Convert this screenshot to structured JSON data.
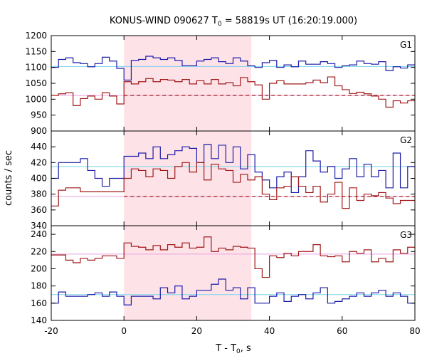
{
  "chart_data": {
    "type": "line",
    "title": "KONUS-WIND 090627 T0 = 58819s UT (16:20:19.000)",
    "title_parts": {
      "prefix": "KONUS-WIND 090627 T",
      "sub": "0",
      "suffix": " = 58819s UT (16:20:19.000)"
    },
    "xlabel": "T - T0, s",
    "xlabel_parts": {
      "prefix": "T - T",
      "sub": "0",
      "suffix": ", s"
    },
    "ylabel": "counts / sec",
    "xlim": [
      -20,
      80
    ],
    "x_ticks": [
      -20,
      0,
      20,
      40,
      60,
      80
    ],
    "highlight_interval": [
      0,
      35
    ],
    "bin_edges": [
      -20,
      -18,
      -16,
      -14,
      -12,
      -10,
      -8,
      -6,
      -4,
      -2,
      0,
      2,
      4,
      6,
      8,
      10,
      12,
      14,
      16,
      18,
      20,
      22,
      24,
      26,
      28,
      30,
      32,
      34,
      36,
      38,
      40,
      42,
      44,
      46,
      48,
      50,
      52,
      54,
      56,
      58,
      60,
      62,
      64,
      66,
      68,
      70,
      72,
      74,
      76,
      78,
      80
    ],
    "panels": [
      {
        "name": "G1",
        "ylim": [
          900,
          1200
        ],
        "y_ticks": [
          900,
          950,
          1000,
          1050,
          1100,
          1150,
          1200
        ],
        "series": [
          {
            "name": "blue",
            "color": "#1c1ca8",
            "bg_level": 1103,
            "bg_color": "#7ad4ee",
            "values": [
              1100,
              1125,
              1130,
              1115,
              1112,
              1102,
              1112,
              1132,
              1120,
              1097,
              1060,
              1122,
              1125,
              1135,
              1130,
              1125,
              1130,
              1122,
              1105,
              1105,
              1120,
              1125,
              1130,
              1118,
              1112,
              1130,
              1120,
              1105,
              1100,
              1115,
              1122,
              1100,
              1108,
              1102,
              1120,
              1110,
              1110,
              1118,
              1112,
              1100,
              1105,
              1108,
              1120,
              1112,
              1110,
              1118,
              1090,
              1102,
              1098,
              1108
            ]
          },
          {
            "name": "red",
            "color": "#a01818",
            "bg_level": 1012,
            "bg_color": "#e8a0e0",
            "dashed_level": 1012,
            "values": [
              1012,
              1017,
              1020,
              980,
              1002,
              1010,
              1000,
              1020,
              1010,
              985,
              1055,
              1048,
              1055,
              1065,
              1055,
              1062,
              1060,
              1055,
              1062,
              1048,
              1058,
              1048,
              1062,
              1048,
              1052,
              1042,
              1068,
              1055,
              1045,
              1000,
              1050,
              1058,
              1048,
              1048,
              1048,
              1052,
              1060,
              1052,
              1070,
              1042,
              1030,
              1018,
              1022,
              1017,
              1010,
              1000,
              975,
              995,
              988,
              995
            ]
          }
        ]
      },
      {
        "name": "G2",
        "ylim": [
          340,
          460
        ],
        "y_ticks": [
          340,
          360,
          380,
          400,
          420,
          440
        ],
        "series": [
          {
            "name": "blue",
            "color": "#1c1ca8",
            "bg_level": 415,
            "bg_color": "#7ad4ee",
            "values": [
              400,
              420,
              420,
              420,
              425,
              410,
              400,
              390,
              400,
              400,
              428,
              428,
              432,
              425,
              440,
              425,
              430,
              435,
              440,
              438,
              420,
              443,
              425,
              442,
              420,
              440,
              412,
              430,
              408,
              398,
              388,
              402,
              408,
              382,
              402,
              435,
              422,
              408,
              415,
              400,
              412,
              425,
              402,
              418,
              402,
              410,
              388,
              432,
              388,
              415
            ]
          },
          {
            "name": "red",
            "color": "#a01818",
            "bg_level": 377,
            "bg_color": "#e8a0e0",
            "dashed_level": 377,
            "values": [
              365,
              385,
              388,
              388,
              383,
              383,
              383,
              383,
              383,
              383,
              400,
              412,
              410,
              402,
              412,
              410,
              400,
              415,
              420,
              408,
              420,
              398,
              418,
              412,
              410,
              395,
              405,
              398,
              402,
              380,
              373,
              388,
              390,
              402,
              390,
              382,
              390,
              370,
              380,
              395,
              362,
              388,
              372,
              380,
              378,
              382,
              375,
              368,
              372,
              372
            ]
          }
        ]
      },
      {
        "name": "G3",
        "ylim": [
          140,
          250
        ],
        "y_ticks": [
          140,
          160,
          180,
          200,
          220,
          240
        ],
        "series": [
          {
            "name": "red",
            "color": "#a01818",
            "bg_level": 217,
            "bg_color": "#e8a0e0",
            "values": [
              216,
              216,
              210,
              207,
              212,
              210,
              212,
              215,
              215,
              212,
              230,
              226,
              225,
              222,
              227,
              222,
              228,
              225,
              230,
              224,
              225,
              237,
              220,
              224,
              222,
              226,
              225,
              224,
              200,
              190,
              215,
              213,
              218,
              215,
              220,
              220,
              228,
              215,
              214,
              215,
              208,
              220,
              218,
              222,
              208,
              212,
              208,
              222,
              218,
              225
            ]
          },
          {
            "name": "blue",
            "color": "#1c1ca8",
            "bg_level": 170,
            "bg_color": "#7ad4ee",
            "values": [
              160,
              173,
              168,
              168,
              168,
              170,
              172,
              168,
              173,
              168,
              158,
              168,
              168,
              168,
              165,
              178,
              172,
              180,
              165,
              168,
              175,
              175,
              182,
              188,
              175,
              178,
              165,
              178,
              160,
              160,
              168,
              172,
              162,
              168,
              170,
              165,
              172,
              178,
              160,
              162,
              165,
              168,
              172,
              168,
              172,
              175,
              168,
              172,
              168,
              160
            ]
          }
        ]
      }
    ]
  }
}
